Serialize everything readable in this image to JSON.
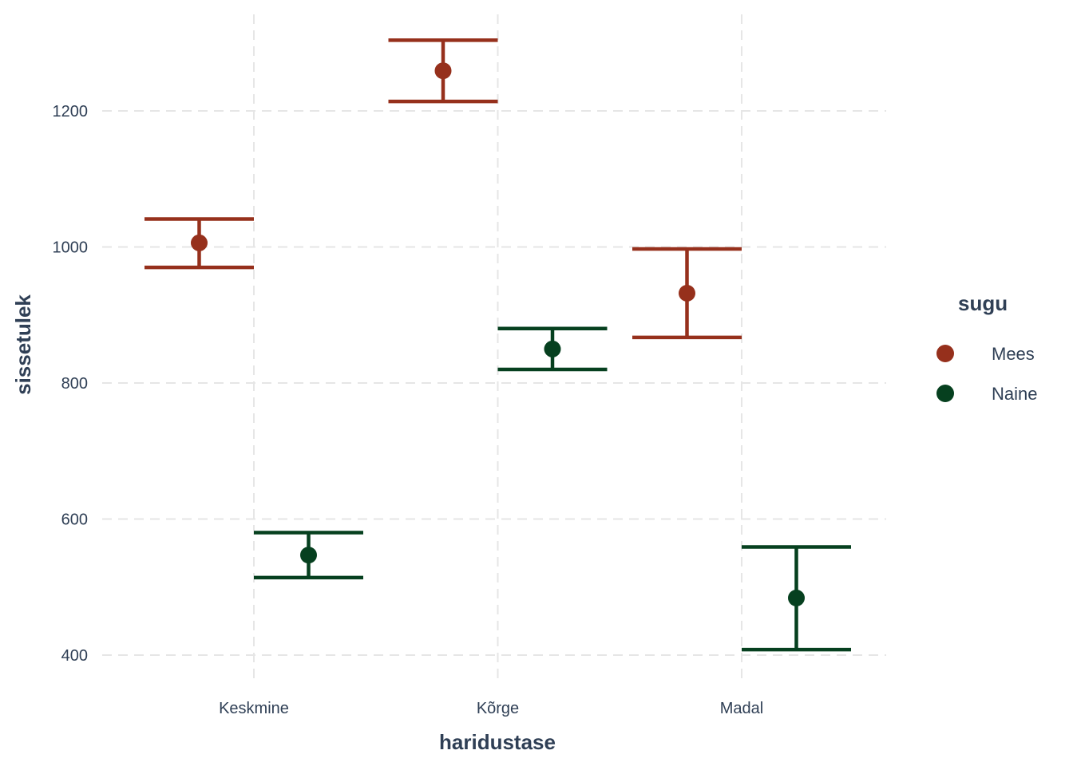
{
  "chart_data": {
    "type": "errorbar",
    "title": "",
    "xlabel": "haridustase",
    "ylabel": "sissetulek",
    "categories": [
      "Keskmine",
      "Kõrge",
      "Madal"
    ],
    "ylim": [
      360,
      1340
    ],
    "yticks": [
      400,
      600,
      800,
      1000,
      1200
    ],
    "grid": true,
    "legend": {
      "title": "sugu",
      "position": "right"
    },
    "series": [
      {
        "name": "Mees",
        "color": "#96301c",
        "points": [
          {
            "category": "Keskmine",
            "mean": 1006,
            "lower": 970,
            "upper": 1041
          },
          {
            "category": "Kõrge",
            "mean": 1259,
            "lower": 1214,
            "upper": 1304
          },
          {
            "category": "Madal",
            "mean": 932,
            "lower": 867,
            "upper": 997
          }
        ]
      },
      {
        "name": "Naine",
        "color": "#06401f",
        "points": [
          {
            "category": "Keskmine",
            "mean": 547,
            "lower": 514,
            "upper": 580
          },
          {
            "category": "Kõrge",
            "mean": 850,
            "lower": 820,
            "upper": 880
          },
          {
            "category": "Madal",
            "mean": 484,
            "lower": 408,
            "upper": 559
          }
        ]
      }
    ]
  }
}
